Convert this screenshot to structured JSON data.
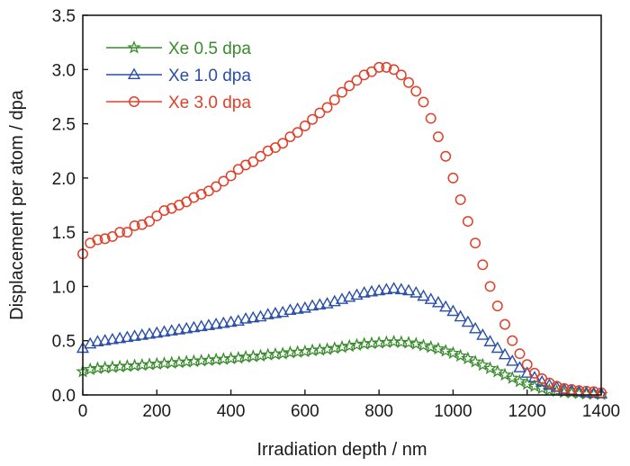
{
  "chart_data": {
    "type": "scatter",
    "xlabel": "Irradiation depth / nm",
    "ylabel": "Displacement per atom / dpa",
    "xlim": [
      0,
      1400
    ],
    "ylim": [
      0,
      3.5
    ],
    "xticks": [
      0,
      200,
      400,
      600,
      800,
      1000,
      1200,
      1400
    ],
    "yticks": [
      0.0,
      0.5,
      1.0,
      1.5,
      2.0,
      2.5,
      3.0,
      3.5
    ],
    "xtick_labels": [
      "0",
      "200",
      "400",
      "600",
      "800",
      "1000",
      "1200",
      "1400"
    ],
    "ytick_labels": [
      "0.0",
      "0.5",
      "1.0",
      "1.5",
      "2.0",
      "2.5",
      "3.0",
      "3.5"
    ],
    "legend_position": "top-left",
    "grid": false,
    "x": [
      0,
      20,
      40,
      60,
      80,
      100,
      120,
      140,
      160,
      180,
      200,
      220,
      240,
      260,
      280,
      300,
      320,
      340,
      360,
      380,
      400,
      420,
      440,
      460,
      480,
      500,
      520,
      540,
      560,
      580,
      600,
      620,
      640,
      660,
      680,
      700,
      720,
      740,
      760,
      780,
      800,
      820,
      840,
      860,
      880,
      900,
      920,
      940,
      960,
      980,
      1000,
      1020,
      1040,
      1060,
      1080,
      1100,
      1120,
      1140,
      1160,
      1180,
      1200,
      1220,
      1240,
      1260,
      1280,
      1300,
      1320,
      1340,
      1360,
      1380,
      1400
    ],
    "series": [
      {
        "name": "Xe 0.5 dpa",
        "color": "#3a8a2e",
        "marker": "star",
        "values": [
          0.215,
          0.235,
          0.245,
          0.25,
          0.255,
          0.26,
          0.265,
          0.27,
          0.275,
          0.28,
          0.285,
          0.29,
          0.295,
          0.3,
          0.305,
          0.31,
          0.315,
          0.32,
          0.325,
          0.33,
          0.335,
          0.34,
          0.35,
          0.355,
          0.36,
          0.37,
          0.375,
          0.38,
          0.39,
          0.395,
          0.4,
          0.41,
          0.415,
          0.42,
          0.43,
          0.44,
          0.45,
          0.46,
          0.47,
          0.475,
          0.48,
          0.485,
          0.49,
          0.485,
          0.48,
          0.47,
          0.455,
          0.44,
          0.425,
          0.405,
          0.385,
          0.36,
          0.335,
          0.305,
          0.275,
          0.245,
          0.215,
          0.185,
          0.155,
          0.125,
          0.1,
          0.08,
          0.06,
          0.045,
          0.035,
          0.025,
          0.02,
          0.015,
          0.01,
          0.008,
          0.005
        ]
      },
      {
        "name": "Xe 1.0 dpa",
        "color": "#2a4fa8",
        "marker": "triangle",
        "values": [
          0.43,
          0.47,
          0.49,
          0.5,
          0.51,
          0.52,
          0.53,
          0.54,
          0.55,
          0.56,
          0.57,
          0.58,
          0.59,
          0.6,
          0.61,
          0.62,
          0.63,
          0.64,
          0.65,
          0.66,
          0.67,
          0.68,
          0.7,
          0.71,
          0.72,
          0.74,
          0.75,
          0.76,
          0.78,
          0.79,
          0.8,
          0.82,
          0.83,
          0.84,
          0.86,
          0.88,
          0.9,
          0.92,
          0.94,
          0.95,
          0.96,
          0.97,
          0.98,
          0.97,
          0.96,
          0.94,
          0.91,
          0.88,
          0.85,
          0.81,
          0.77,
          0.72,
          0.67,
          0.61,
          0.55,
          0.49,
          0.43,
          0.37,
          0.31,
          0.25,
          0.2,
          0.16,
          0.12,
          0.09,
          0.07,
          0.05,
          0.04,
          0.03,
          0.02,
          0.015,
          0.01
        ]
      },
      {
        "name": "Xe 3.0 dpa",
        "color": "#e0402a",
        "marker": "circle",
        "values": [
          1.3,
          1.4,
          1.43,
          1.44,
          1.46,
          1.5,
          1.5,
          1.56,
          1.57,
          1.6,
          1.65,
          1.7,
          1.72,
          1.75,
          1.78,
          1.82,
          1.85,
          1.88,
          1.92,
          1.97,
          2.02,
          2.08,
          2.12,
          2.15,
          2.2,
          2.25,
          2.28,
          2.32,
          2.38,
          2.42,
          2.48,
          2.54,
          2.6,
          2.65,
          2.72,
          2.79,
          2.85,
          2.9,
          2.95,
          2.98,
          3.02,
          3.02,
          3.0,
          2.95,
          2.88,
          2.8,
          2.7,
          2.55,
          2.38,
          2.2,
          2.0,
          1.8,
          1.6,
          1.4,
          1.2,
          1.0,
          0.82,
          0.65,
          0.5,
          0.38,
          0.28,
          0.2,
          0.15,
          0.11,
          0.08,
          0.06,
          0.05,
          0.04,
          0.035,
          0.03,
          0.02
        ]
      }
    ]
  }
}
